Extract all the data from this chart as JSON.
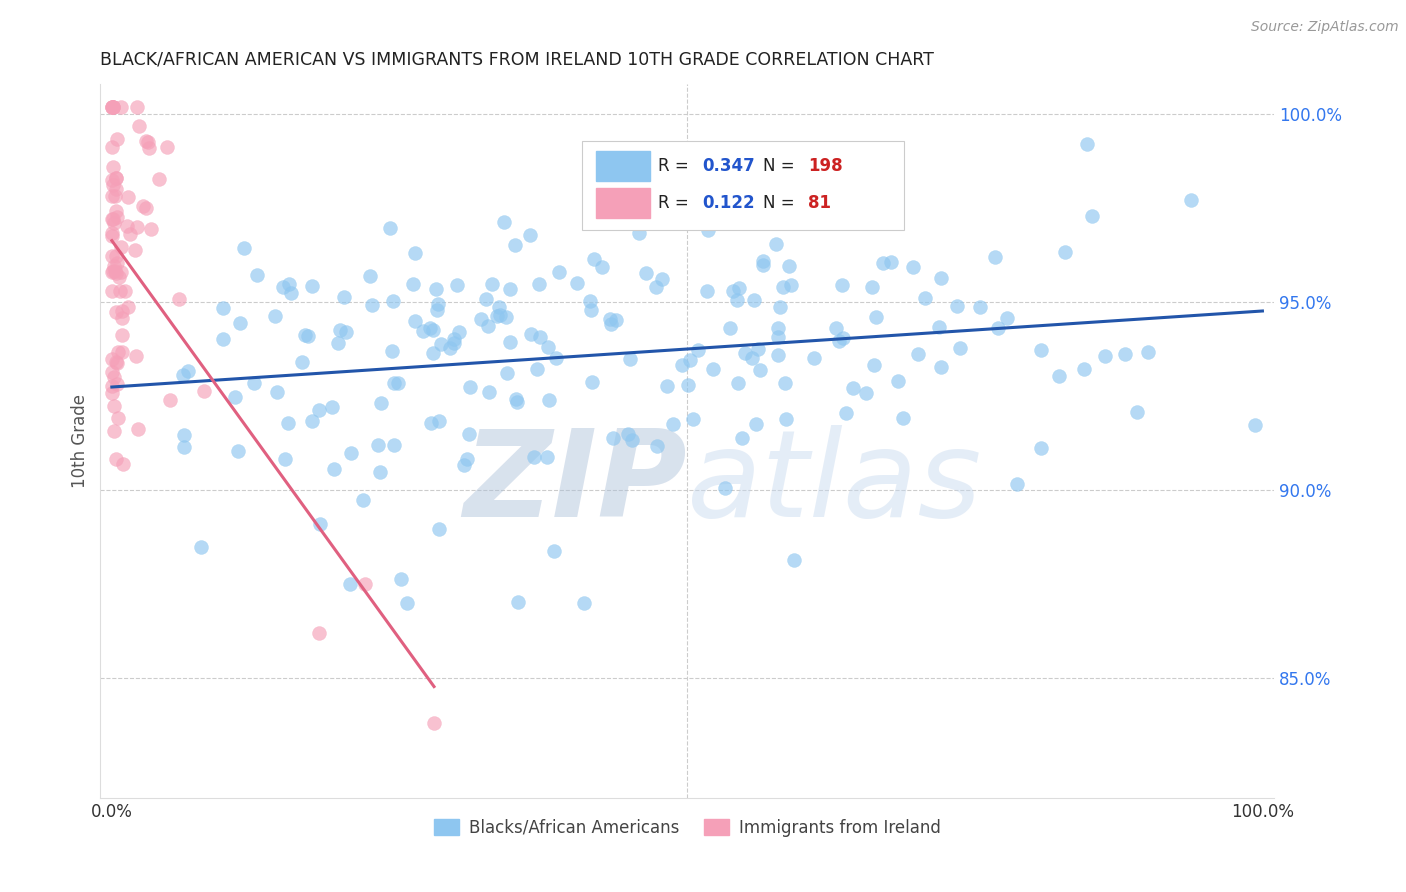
{
  "title": "BLACK/AFRICAN AMERICAN VS IMMIGRANTS FROM IRELAND 10TH GRADE CORRELATION CHART",
  "source_text": "Source: ZipAtlas.com",
  "ylabel": "10th Grade",
  "right_yticks": [
    0.85,
    0.9,
    0.95,
    1.0
  ],
  "right_yticklabels": [
    "85.0%",
    "90.0%",
    "95.0%",
    "100.0%"
  ],
  "xlim": [
    -0.01,
    1.01
  ],
  "ylim": [
    0.818,
    1.008
  ],
  "blue_R": 0.347,
  "blue_N": 198,
  "pink_R": 0.122,
  "pink_N": 81,
  "blue_color": "#8EC6F0",
  "pink_color": "#F5A0B8",
  "blue_line_color": "#2255AA",
  "pink_line_color": "#E06080",
  "legend_text_color": "#333333",
  "legend_R_value_color": "#2255CC",
  "legend_N_value_color": "#CC2222",
  "watermark_zip_color": "#B8D0EC",
  "watermark_atlas_color": "#C8DCF0",
  "background_color": "#FFFFFF",
  "grid_color": "#CCCCCC",
  "title_color": "#222222",
  "axis_label_color": "#555555",
  "right_axis_color": "#3377EE",
  "bottom_label_blue": "Blacks/African Americans",
  "bottom_label_pink": "Immigrants from Ireland",
  "blue_seed": 42,
  "pink_seed": 7
}
